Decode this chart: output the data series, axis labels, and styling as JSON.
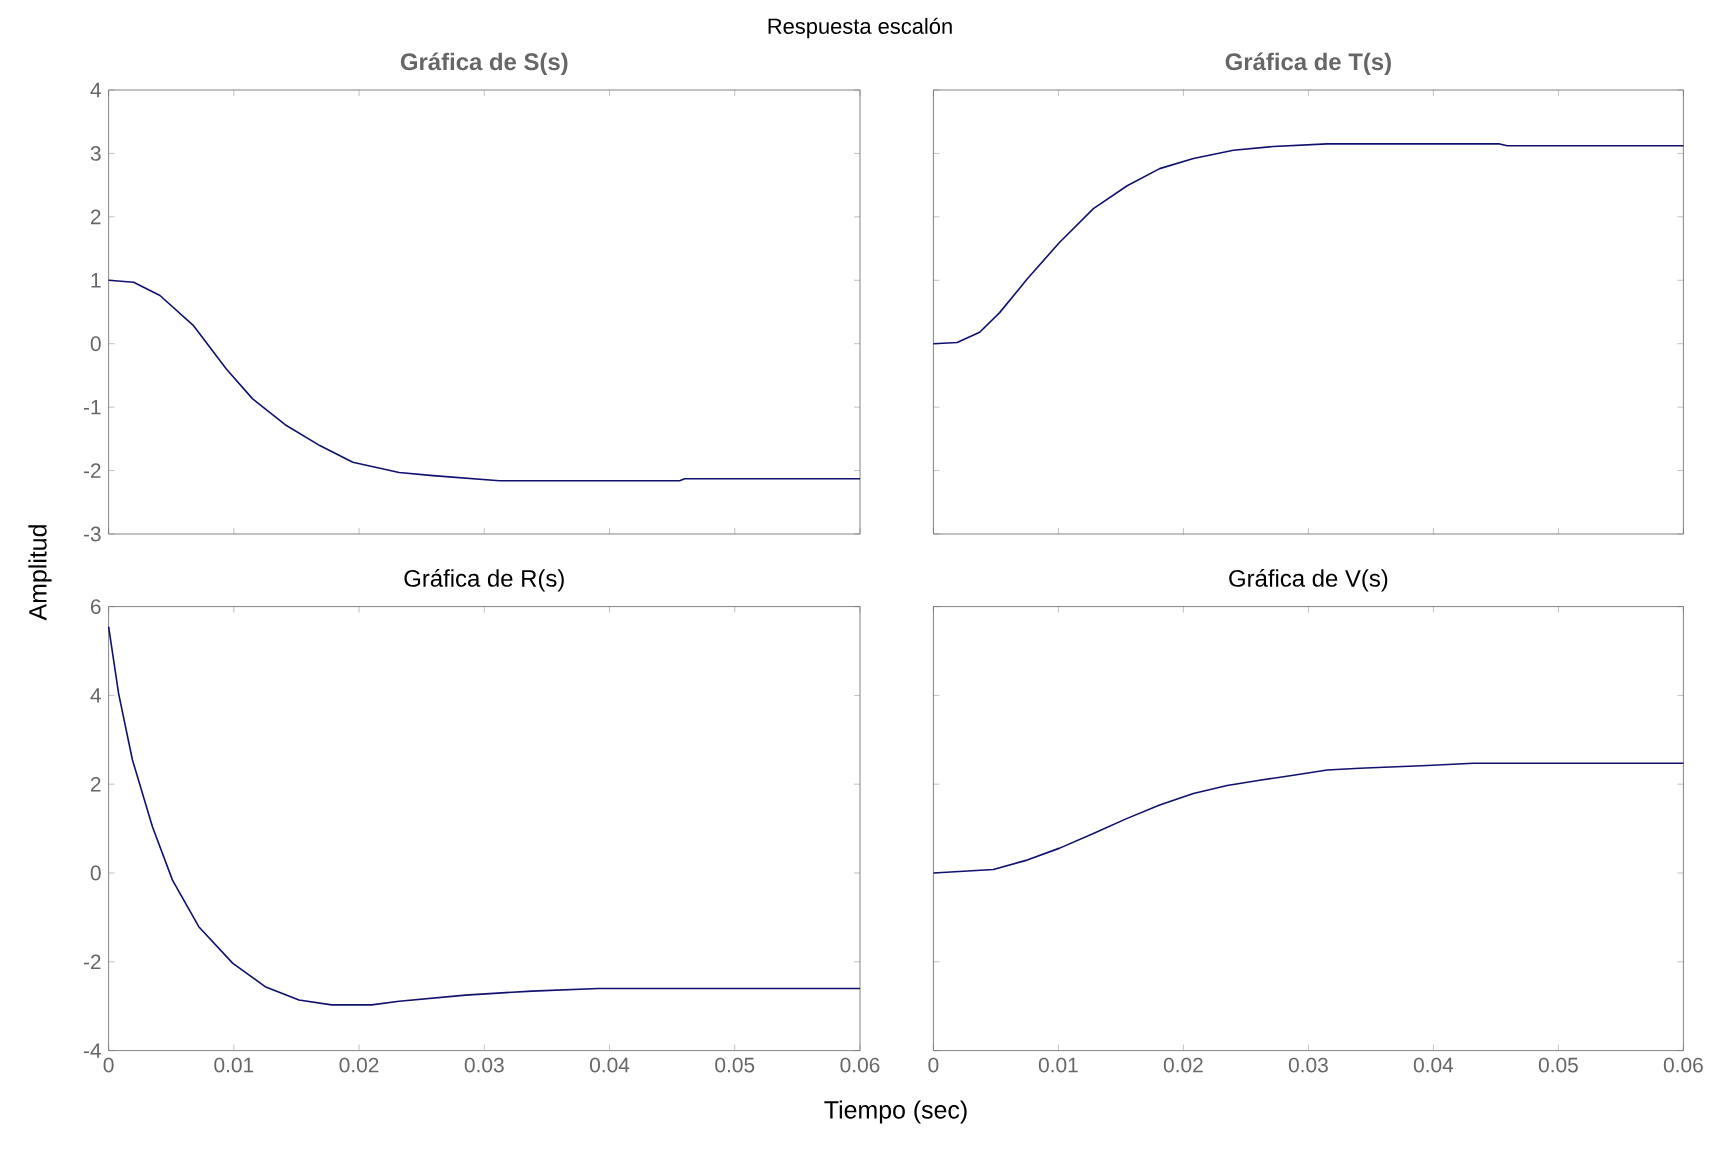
{
  "chart_data": [
    {
      "type": "line",
      "title": "Gráfica de S(s)",
      "annotations": [
        "Respuesta escalón"
      ],
      "xlim": [
        0,
        0.06
      ],
      "xticks": [
        0,
        0.01,
        0.02,
        0.03,
        0.04,
        0.05,
        0.06
      ],
      "ylim": [
        -3,
        4
      ],
      "yticks": [
        -3,
        -2,
        -1,
        0,
        1,
        2,
        3,
        4
      ],
      "tick_labels": "y",
      "series": [
        {
          "color": "#10106e",
          "x": [
            0,
            0.002,
            0.0041,
            0.0068,
            0.0094,
            0.0115,
            0.0142,
            0.0169,
            0.0195,
            0.0232,
            0.0259,
            0.0312,
            0.0456,
            0.046,
            0.06
          ],
          "values": [
            1.0,
            0.97,
            0.76,
            0.28,
            -0.4,
            -0.87,
            -1.29,
            -1.61,
            -1.87,
            -2.03,
            -2.08,
            -2.16,
            -2.16,
            -2.13,
            -2.13
          ]
        }
      ]
    },
    {
      "type": "line",
      "title": "Gráfica de T(s)",
      "xlim": [
        0,
        0.06
      ],
      "xticks": [
        0,
        0.01,
        0.02,
        0.03,
        0.04,
        0.05,
        0.06
      ],
      "ylim": [
        -3,
        4
      ],
      "yticks": [
        -3,
        -2,
        -1,
        0,
        1,
        2,
        3,
        4
      ],
      "tick_labels": false,
      "series": [
        {
          "color": "#10106e",
          "x": [
            0,
            0.0019,
            0.0037,
            0.0053,
            0.0075,
            0.0101,
            0.0128,
            0.0155,
            0.0181,
            0.0208,
            0.024,
            0.0272,
            0.0315,
            0.0453,
            0.0459,
            0.06
          ],
          "values": [
            0,
            0.02,
            0.18,
            0.49,
            1.02,
            1.6,
            2.13,
            2.49,
            2.76,
            2.92,
            3.05,
            3.11,
            3.15,
            3.15,
            3.12,
            3.12
          ]
        }
      ]
    },
    {
      "type": "line",
      "title": "Gráfica de R(s)",
      "xlabel": "Tiempo (sec)",
      "ylabel": "Amplitud",
      "xlim": [
        0,
        0.06
      ],
      "xticks": [
        0,
        0.01,
        0.02,
        0.03,
        0.04,
        0.05,
        0.06
      ],
      "ylim": [
        -4,
        6
      ],
      "yticks": [
        -4,
        -2,
        0,
        2,
        4,
        6
      ],
      "series": [
        {
          "color": "#10106e",
          "x": [
            0,
            0.0008,
            0.0019,
            0.0035,
            0.0051,
            0.0072,
            0.0099,
            0.0125,
            0.0152,
            0.0178,
            0.021,
            0.0232,
            0.0285,
            0.0338,
            0.0391,
            0.06
          ],
          "values": [
            5.55,
            4.04,
            2.55,
            1.04,
            -0.16,
            -1.21,
            -2.03,
            -2.56,
            -2.86,
            -2.97,
            -2.97,
            -2.89,
            -2.75,
            -2.66,
            -2.6,
            -2.6
          ]
        }
      ]
    },
    {
      "type": "line",
      "title": "Gráfica de V(s)",
      "xlim": [
        0,
        0.06
      ],
      "xticks": [
        0,
        0.01,
        0.02,
        0.03,
        0.04,
        0.05,
        0.06
      ],
      "ylim": [
        -4,
        6
      ],
      "yticks": [
        -4,
        -2,
        0,
        2,
        4,
        6
      ],
      "tick_labels": "x",
      "series": [
        {
          "color": "#10106e",
          "x": [
            0,
            0.0048,
            0.0075,
            0.0101,
            0.0128,
            0.0155,
            0.0181,
            0.0208,
            0.0235,
            0.0261,
            0.0288,
            0.0315,
            0.0341,
            0.0395,
            0.0432,
            0.06
          ],
          "values": [
            0,
            0.08,
            0.29,
            0.56,
            0.89,
            1.23,
            1.53,
            1.79,
            1.97,
            2.09,
            2.2,
            2.32,
            2.36,
            2.42,
            2.47,
            2.47
          ]
        }
      ]
    }
  ]
}
